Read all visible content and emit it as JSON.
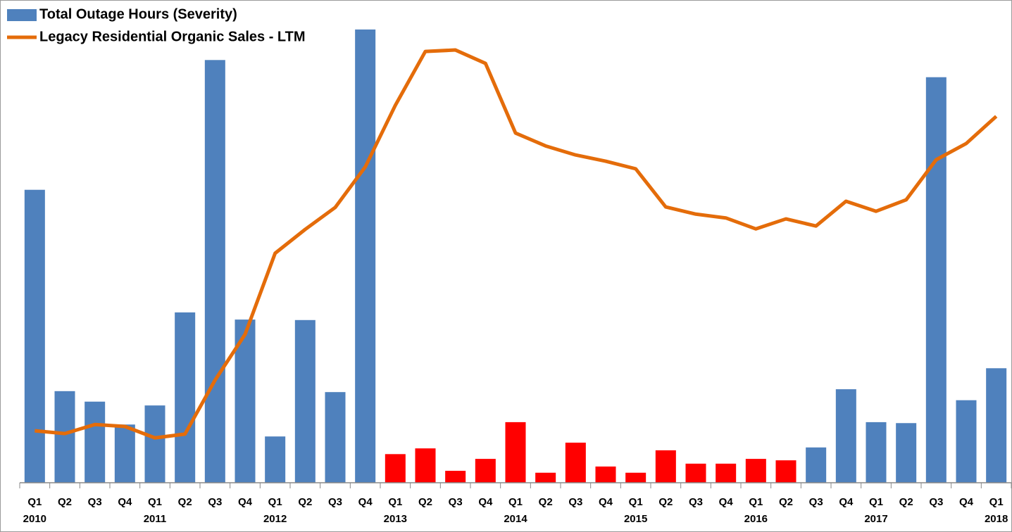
{
  "chart_data": {
    "type": "bar_line",
    "categories": [
      "Q1",
      "Q2",
      "Q3",
      "Q4",
      "Q1",
      "Q2",
      "Q3",
      "Q4",
      "Q1",
      "Q2",
      "Q3",
      "Q4",
      "Q1",
      "Q2",
      "Q3",
      "Q4",
      "Q1",
      "Q2",
      "Q3",
      "Q4",
      "Q1",
      "Q2",
      "Q3",
      "Q4",
      "Q1",
      "Q2",
      "Q3",
      "Q4",
      "Q1",
      "Q2",
      "Q3",
      "Q4",
      "Q1"
    ],
    "category_groups": [
      "2010",
      null,
      null,
      null,
      "2011",
      null,
      null,
      null,
      "2012",
      null,
      null,
      null,
      "2013",
      null,
      null,
      null,
      "2014",
      null,
      null,
      null,
      "2015",
      null,
      null,
      null,
      "2016",
      null,
      null,
      null,
      "2017",
      null,
      null,
      null,
      "2018"
    ],
    "ylim": [
      0,
      100
    ],
    "legend": "top-left",
    "series": [
      {
        "name": "Total Outage Hours (Severity)",
        "type": "bar",
        "color": "#4f81bd",
        "values": [
          61.4,
          19.2,
          17.0,
          12.2,
          16.2,
          35.7,
          88.6,
          34.2,
          9.7,
          34.1,
          19.0,
          95.0,
          6.0,
          7.2,
          2.5,
          5.0,
          12.7,
          2.1,
          8.4,
          3.4,
          2.1,
          6.8,
          4.0,
          4.0,
          5.0,
          4.7,
          7.4,
          19.6,
          12.7,
          12.5,
          85.0,
          17.3,
          24.0
        ],
        "colors": [
          "#4f81bd",
          "#4f81bd",
          "#4f81bd",
          "#4f81bd",
          "#4f81bd",
          "#4f81bd",
          "#4f81bd",
          "#4f81bd",
          "#4f81bd",
          "#4f81bd",
          "#4f81bd",
          "#4f81bd",
          "#ff0000",
          "#ff0000",
          "#ff0000",
          "#ff0000",
          "#ff0000",
          "#ff0000",
          "#ff0000",
          "#ff0000",
          "#ff0000",
          "#ff0000",
          "#ff0000",
          "#ff0000",
          "#ff0000",
          "#ff0000",
          "#4f81bd",
          "#4f81bd",
          "#4f81bd",
          "#4f81bd",
          "#4f81bd",
          "#4f81bd",
          "#4f81bd"
        ]
      },
      {
        "name": "Legacy Residential Organic Sales - LTM",
        "type": "line",
        "color": "#e46c0a",
        "values": [
          10.9,
          10.3,
          12.2,
          11.8,
          9.4,
          10.2,
          21.5,
          31.1,
          48.1,
          53.1,
          57.7,
          66.2,
          79.1,
          90.4,
          90.7,
          87.9,
          73.3,
          70.6,
          68.7,
          67.4,
          65.8,
          57.8,
          56.3,
          55.5,
          53.2,
          55.3,
          53.8,
          59.0,
          56.9,
          59.3,
          67.7,
          71.1,
          76.8
        ]
      }
    ]
  }
}
